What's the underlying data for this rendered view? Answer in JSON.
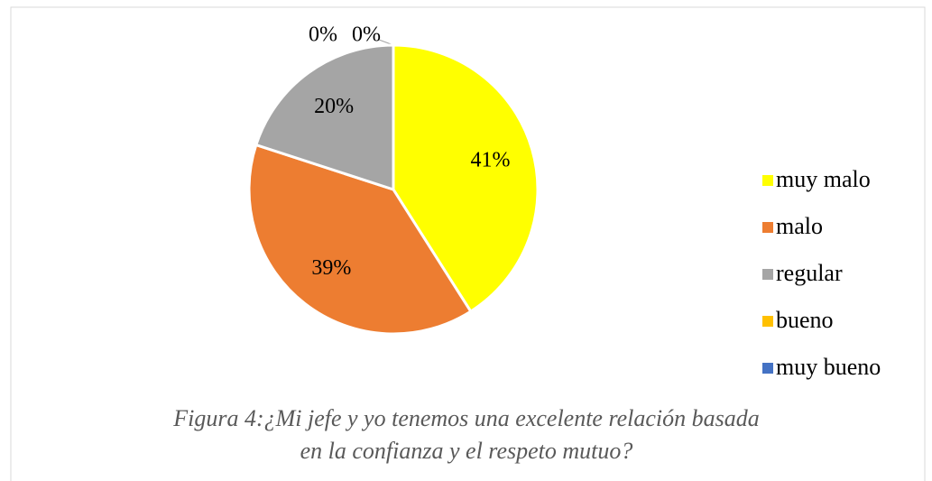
{
  "chart_data": {
    "type": "pie",
    "categories": [
      "muy malo",
      "malo",
      "regular",
      "bueno",
      "muy bueno"
    ],
    "values": [
      41,
      39,
      20,
      0,
      0
    ],
    "value_labels": [
      "41%",
      "39%",
      "20%",
      "0%",
      "0%"
    ],
    "colors": [
      "#ffff00",
      "#ed7d31",
      "#a5a5a5",
      "#ffc000",
      "#4472c4"
    ],
    "legend": "right",
    "caption": [
      "Figura 4:¿Mi jefe y yo tenemos una excelente relación basada",
      "en la confianza y el respeto mutuo?"
    ]
  }
}
